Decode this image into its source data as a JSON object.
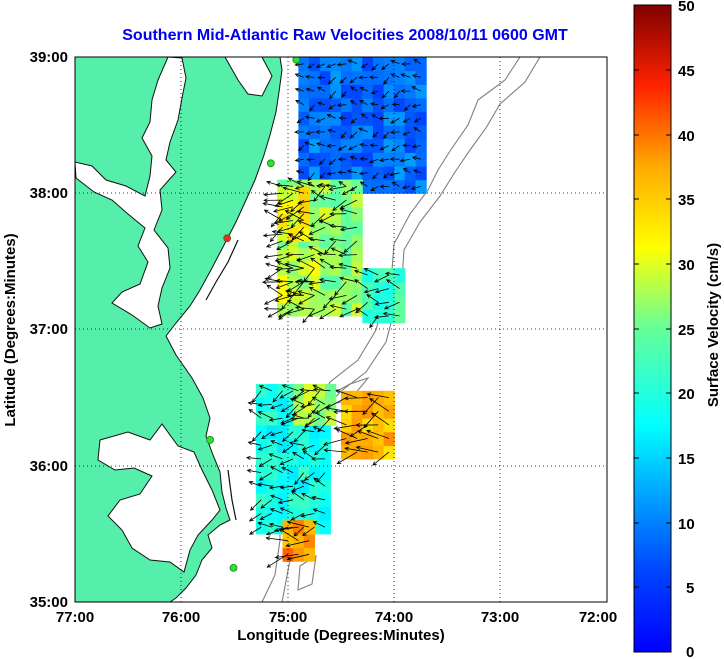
{
  "figure": {
    "title": "Southern Mid-Atlantic Raw Velocities 2008/10/11 0600 GMT",
    "xlabel": "Longitude (Degrees:Minutes)",
    "ylabel": "Latitude (Degrees:Minutes)",
    "colorbar_label": "Surface Velocity (cm/s)"
  },
  "axes": {
    "lon_range": [
      -77,
      -72
    ],
    "lat_range": [
      35,
      39
    ],
    "x_ticks": [
      "77:00",
      "76:00",
      "75:00",
      "74:00",
      "73:00",
      "72:00"
    ],
    "y_ticks": [
      "39:00",
      "38:00",
      "37:00",
      "36:00",
      "35:00"
    ],
    "grid": "dotted"
  },
  "colorbar": {
    "min": 0,
    "max": 50,
    "ticks": [
      "50",
      "45",
      "40",
      "35",
      "30",
      "25",
      "20",
      "15",
      "10",
      "5",
      "0"
    ]
  },
  "colors": {
    "land": "#55eeaa",
    "title": "#0000ee",
    "contour": "#808080",
    "station": "#33dd33",
    "station_highlight": "#ff2222"
  },
  "chart_data": {
    "type": "heatmap",
    "title": "Southern Mid-Atlantic Raw Velocities 2008/10/11 0600 GMT",
    "xlabel": "Longitude (Degrees:Minutes)",
    "ylabel": "Latitude (Degrees:Minutes)",
    "colorbar_label": "Surface Velocity (cm/s)",
    "value_range": [
      0,
      50
    ],
    "regions": [
      {
        "lon": [
          -74.9,
          -73.7
        ],
        "lat": [
          38.0,
          38.95
        ],
        "speed": 9
      },
      {
        "lon": [
          -75.1,
          -74.3
        ],
        "lat": [
          37.1,
          38.05
        ],
        "speed": 27
      },
      {
        "lon": [
          -75.1,
          -74.8
        ],
        "lat": [
          37.65,
          38.05
        ],
        "speed": 32
      },
      {
        "lon": [
          -75.1,
          -74.7
        ],
        "lat": [
          37.1,
          37.45
        ],
        "speed": 29
      },
      {
        "lon": [
          -74.3,
          -73.95
        ],
        "lat": [
          37.05,
          37.45
        ],
        "speed": 22
      },
      {
        "lon": [
          -75.3,
          -74.6
        ],
        "lat": [
          35.5,
          36.6
        ],
        "speed": 19
      },
      {
        "lon": [
          -74.95,
          -74.55
        ],
        "lat": [
          36.3,
          36.6
        ],
        "speed": 28
      },
      {
        "lon": [
          -74.5,
          -74.0
        ],
        "lat": [
          36.05,
          36.5
        ],
        "speed": 36
      },
      {
        "lon": [
          -75.05,
          -74.8
        ],
        "lat": [
          35.3,
          35.55
        ],
        "speed": 38
      }
    ],
    "stations": [
      {
        "lon": -74.92,
        "lat": 38.98
      },
      {
        "lon": -75.16,
        "lat": 38.22
      },
      {
        "lon": -75.57,
        "lat": 37.67,
        "highlight": true
      },
      {
        "lon": -75.73,
        "lat": 36.19
      },
      {
        "lon": -75.51,
        "lat": 35.25
      }
    ]
  }
}
